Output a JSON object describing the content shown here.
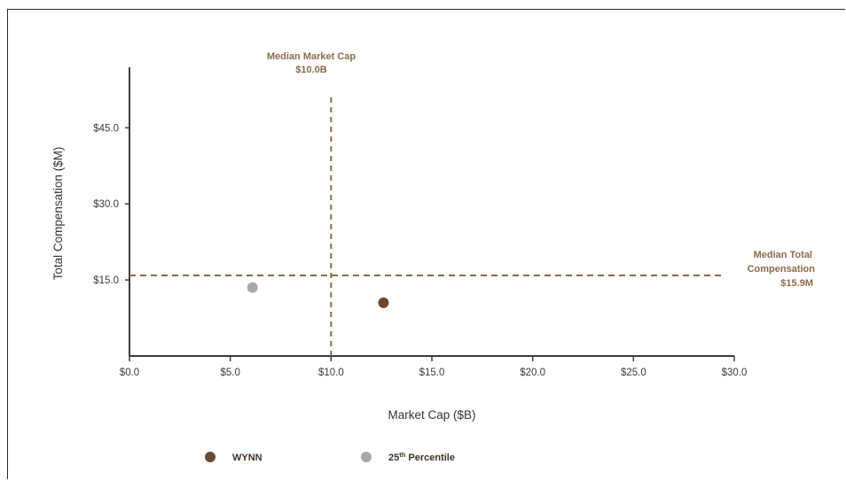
{
  "chart_data": {
    "type": "scatter",
    "xlabel": "Market Cap ($B)",
    "ylabel": "Total Compensation ($M)",
    "xlim": [
      0,
      30
    ],
    "ylim": [
      0,
      55
    ],
    "x_ticks": [
      "$0.0",
      "$5.0",
      "$10.0",
      "$15.0",
      "$20.0",
      "$25.0",
      "$30.0"
    ],
    "y_ticks": [
      "$15.0",
      "$30.0",
      "$45.0"
    ],
    "series": [
      {
        "name": "WYNN",
        "color": "#6b4a2f",
        "points": [
          {
            "x": 12.6,
            "y": 10.5
          }
        ]
      },
      {
        "name": "25th Percentile",
        "color": "#a8a8a8",
        "points": [
          {
            "x": 6.1,
            "y": 13.5
          }
        ]
      }
    ],
    "reference_lines": {
      "vertical": {
        "value": 10.0,
        "label_line1": "Median Market Cap",
        "label_line2": "$10.0B",
        "color": "#8a6a4a"
      },
      "horizontal": {
        "value": 15.9,
        "label_line1": "Median Total",
        "label_line2": "Compensation",
        "label_line3": "$15.9M",
        "color": "#8a6a4a"
      }
    },
    "legend": {
      "placement": "bottom",
      "items": [
        {
          "label": "WYNN",
          "color": "#6b4a2f"
        },
        {
          "label_main": "25",
          "label_sup": "th",
          "label_rest": " Percentile",
          "color": "#a8a8a8"
        }
      ]
    },
    "grid": false
  }
}
